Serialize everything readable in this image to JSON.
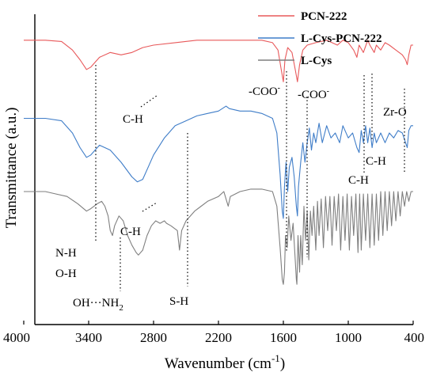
{
  "chart_data": {
    "type": "line",
    "xlabel_main": "Wavenumber (cm",
    "xlabel_sup": "-1",
    "xlabel_end": ")",
    "ylabel": "Transmittance (a.u.)",
    "x_ticks": [
      "4000",
      "3400",
      "2800",
      "2200",
      "1600",
      "1000",
      "400"
    ],
    "xlim": [
      4000,
      400
    ],
    "series": [
      {
        "name": "PCN-222",
        "color": "#e8585a",
        "points": [
          [
            4000,
            0.1
          ],
          [
            3800,
            0.1
          ],
          [
            3650,
            0.105
          ],
          [
            3550,
            0.14
          ],
          [
            3480,
            0.18
          ],
          [
            3420,
            0.22
          ],
          [
            3380,
            0.21
          ],
          [
            3300,
            0.17
          ],
          [
            3200,
            0.15
          ],
          [
            3100,
            0.16
          ],
          [
            3000,
            0.15
          ],
          [
            2900,
            0.13
          ],
          [
            2800,
            0.12
          ],
          [
            2600,
            0.11
          ],
          [
            2400,
            0.1
          ],
          [
            2200,
            0.1
          ],
          [
            2000,
            0.1
          ],
          [
            1800,
            0.1
          ],
          [
            1700,
            0.11
          ],
          [
            1650,
            0.14
          ],
          [
            1620,
            0.22
          ],
          [
            1600,
            0.27
          ],
          [
            1585,
            0.18
          ],
          [
            1560,
            0.13
          ],
          [
            1520,
            0.15
          ],
          [
            1490,
            0.22
          ],
          [
            1470,
            0.27
          ],
          [
            1450,
            0.2
          ],
          [
            1420,
            0.14
          ],
          [
            1380,
            0.12
          ],
          [
            1300,
            0.11
          ],
          [
            1200,
            0.1
          ],
          [
            1100,
            0.12
          ],
          [
            1050,
            0.1
          ],
          [
            1000,
            0.11
          ],
          [
            950,
            0.14
          ],
          [
            920,
            0.17
          ],
          [
            900,
            0.12
          ],
          [
            860,
            0.15
          ],
          [
            820,
            0.1
          ],
          [
            800,
            0.12
          ],
          [
            760,
            0.15
          ],
          [
            740,
            0.12
          ],
          [
            700,
            0.14
          ],
          [
            660,
            0.11
          ],
          [
            620,
            0.12
          ],
          [
            560,
            0.14
          ],
          [
            500,
            0.16
          ],
          [
            470,
            0.18
          ],
          [
            455,
            0.2
          ],
          [
            440,
            0.16
          ],
          [
            420,
            0.12
          ],
          [
            400,
            0.12
          ]
        ]
      },
      {
        "name": "L-Cys-PCN-222",
        "color": "#3f7dc8",
        "points": [
          [
            4000,
            0.42
          ],
          [
            3800,
            0.42
          ],
          [
            3650,
            0.43
          ],
          [
            3550,
            0.48
          ],
          [
            3480,
            0.54
          ],
          [
            3420,
            0.58
          ],
          [
            3380,
            0.57
          ],
          [
            3300,
            0.53
          ],
          [
            3200,
            0.55
          ],
          [
            3100,
            0.6
          ],
          [
            3000,
            0.66
          ],
          [
            2950,
            0.68
          ],
          [
            2900,
            0.67
          ],
          [
            2850,
            0.62
          ],
          [
            2800,
            0.57
          ],
          [
            2700,
            0.5
          ],
          [
            2600,
            0.45
          ],
          [
            2500,
            0.43
          ],
          [
            2400,
            0.41
          ],
          [
            2300,
            0.4
          ],
          [
            2200,
            0.39
          ],
          [
            2130,
            0.37
          ],
          [
            2100,
            0.38
          ],
          [
            2000,
            0.39
          ],
          [
            1900,
            0.39
          ],
          [
            1800,
            0.4
          ],
          [
            1700,
            0.42
          ],
          [
            1660,
            0.48
          ],
          [
            1630,
            0.65
          ],
          [
            1610,
            0.8
          ],
          [
            1600,
            0.83
          ],
          [
            1590,
            0.7
          ],
          [
            1575,
            0.6
          ],
          [
            1560,
            0.72
          ],
          [
            1545,
            0.62
          ],
          [
            1520,
            0.58
          ],
          [
            1500,
            0.66
          ],
          [
            1480,
            0.78
          ],
          [
            1470,
            0.82
          ],
          [
            1460,
            0.7
          ],
          [
            1440,
            0.6
          ],
          [
            1420,
            0.52
          ],
          [
            1400,
            0.6
          ],
          [
            1380,
            0.52
          ],
          [
            1360,
            0.46
          ],
          [
            1340,
            0.55
          ],
          [
            1320,
            0.48
          ],
          [
            1300,
            0.52
          ],
          [
            1270,
            0.44
          ],
          [
            1240,
            0.52
          ],
          [
            1200,
            0.45
          ],
          [
            1160,
            0.5
          ],
          [
            1120,
            0.48
          ],
          [
            1080,
            0.52
          ],
          [
            1050,
            0.45
          ],
          [
            1000,
            0.5
          ],
          [
            960,
            0.48
          ],
          [
            920,
            0.54
          ],
          [
            900,
            0.56
          ],
          [
            880,
            0.47
          ],
          [
            860,
            0.52
          ],
          [
            840,
            0.45
          ],
          [
            820,
            0.52
          ],
          [
            800,
            0.46
          ],
          [
            780,
            0.54
          ],
          [
            760,
            0.48
          ],
          [
            740,
            0.52
          ],
          [
            700,
            0.48
          ],
          [
            660,
            0.52
          ],
          [
            620,
            0.48
          ],
          [
            580,
            0.5
          ],
          [
            540,
            0.47
          ],
          [
            500,
            0.48
          ],
          [
            470,
            0.52
          ],
          [
            455,
            0.54
          ],
          [
            440,
            0.47
          ],
          [
            420,
            0.45
          ],
          [
            400,
            0.45
          ]
        ]
      },
      {
        "name": "L-Cys",
        "color": "#7f7f7f",
        "points": [
          [
            4000,
            0.72
          ],
          [
            3800,
            0.72
          ],
          [
            3700,
            0.73
          ],
          [
            3600,
            0.74
          ],
          [
            3500,
            0.77
          ],
          [
            3420,
            0.8
          ],
          [
            3380,
            0.79
          ],
          [
            3320,
            0.77
          ],
          [
            3280,
            0.76
          ],
          [
            3250,
            0.78
          ],
          [
            3220,
            0.82
          ],
          [
            3200,
            0.88
          ],
          [
            3180,
            0.9
          ],
          [
            3160,
            0.86
          ],
          [
            3120,
            0.82
          ],
          [
            3080,
            0.84
          ],
          [
            3040,
            0.9
          ],
          [
            3000,
            0.94
          ],
          [
            2960,
            0.97
          ],
          [
            2940,
            0.98
          ],
          [
            2900,
            0.96
          ],
          [
            2860,
            0.9
          ],
          [
            2820,
            0.86
          ],
          [
            2780,
            0.84
          ],
          [
            2740,
            0.85
          ],
          [
            2700,
            0.84
          ],
          [
            2680,
            0.85
          ],
          [
            2640,
            0.86
          ],
          [
            2580,
            0.88
          ],
          [
            2560,
            0.96
          ],
          [
            2540,
            0.88
          ],
          [
            2500,
            0.84
          ],
          [
            2420,
            0.8
          ],
          [
            2360,
            0.78
          ],
          [
            2300,
            0.76
          ],
          [
            2200,
            0.74
          ],
          [
            2150,
            0.72
          ],
          [
            2110,
            0.78
          ],
          [
            2090,
            0.74
          ],
          [
            2000,
            0.72
          ],
          [
            1900,
            0.71
          ],
          [
            1800,
            0.71
          ],
          [
            1700,
            0.72
          ],
          [
            1660,
            0.78
          ],
          [
            1630,
            0.95
          ],
          [
            1610,
            1.08
          ],
          [
            1600,
            1.1
          ],
          [
            1590,
            1.05
          ],
          [
            1580,
            0.9
          ],
          [
            1565,
            0.95
          ],
          [
            1550,
            0.82
          ],
          [
            1530,
            0.92
          ],
          [
            1510,
            0.85
          ],
          [
            1490,
            1.0
          ],
          [
            1480,
            1.08
          ],
          [
            1475,
            1.1
          ],
          [
            1465,
            0.9
          ],
          [
            1450,
            1.05
          ],
          [
            1440,
            0.9
          ],
          [
            1425,
            1.02
          ],
          [
            1410,
            0.78
          ],
          [
            1395,
            0.92
          ],
          [
            1380,
            0.8
          ],
          [
            1365,
            1.0
          ],
          [
            1350,
            0.8
          ],
          [
            1335,
            0.9
          ],
          [
            1320,
            0.78
          ],
          [
            1300,
            0.96
          ],
          [
            1285,
            0.76
          ],
          [
            1270,
            0.9
          ],
          [
            1250,
            0.75
          ],
          [
            1230,
            0.95
          ],
          [
            1210,
            0.74
          ],
          [
            1190,
            0.88
          ],
          [
            1170,
            0.74
          ],
          [
            1150,
            0.94
          ],
          [
            1130,
            0.74
          ],
          [
            1110,
            0.88
          ],
          [
            1090,
            0.73
          ],
          [
            1070,
            0.96
          ],
          [
            1050,
            0.74
          ],
          [
            1030,
            0.92
          ],
          [
            1010,
            0.73
          ],
          [
            990,
            0.96
          ],
          [
            970,
            0.74
          ],
          [
            950,
            0.9
          ],
          [
            930,
            0.73
          ],
          [
            910,
            0.97
          ],
          [
            895,
            0.73
          ],
          [
            880,
            0.96
          ],
          [
            860,
            0.73
          ],
          [
            840,
            0.92
          ],
          [
            820,
            0.73
          ],
          [
            800,
            0.95
          ],
          [
            780,
            0.73
          ],
          [
            760,
            0.94
          ],
          [
            740,
            0.73
          ],
          [
            720,
            0.92
          ],
          [
            700,
            0.72
          ],
          [
            680,
            0.9
          ],
          [
            660,
            0.72
          ],
          [
            640,
            0.88
          ],
          [
            620,
            0.72
          ],
          [
            600,
            0.86
          ],
          [
            580,
            0.72
          ],
          [
            560,
            0.84
          ],
          [
            540,
            0.72
          ],
          [
            520,
            0.82
          ],
          [
            500,
            0.72
          ],
          [
            480,
            0.78
          ],
          [
            460,
            0.72
          ],
          [
            440,
            0.76
          ],
          [
            420,
            0.72
          ],
          [
            400,
            0.72
          ]
        ]
      }
    ],
    "annotations": {
      "coo1": "-COO",
      "coo1_sup": "-",
      "coo2": "-COO",
      "coo2_sup": "-",
      "ch_top": "C-H",
      "zro": "Zr-O",
      "ch_right_low": "C-H",
      "ch_right_high": "C-H",
      "ch_mid": "C-H",
      "nh": "N-H",
      "oh": "O-H",
      "ohnh2_a": "OH",
      "ohnh2_dots": "···",
      "ohnh2_b": "NH",
      "ohnh2_sub": "2",
      "sh": "S-H"
    }
  }
}
